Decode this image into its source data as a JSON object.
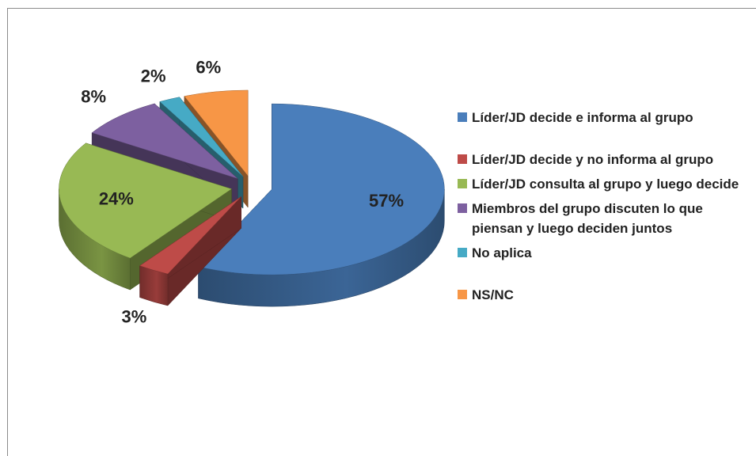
{
  "chart_data": {
    "type": "pie3d",
    "categories": [
      "Líder/JD decide e informa al grupo",
      "Líder/JD decide y no informa al grupo",
      "Líder/JD consulta  al grupo y luego decide",
      "Miembros del grupo discuten lo que piensan y luego deciden juntos",
      "No aplica",
      "NS/NC"
    ],
    "values": [
      57,
      3,
      24,
      8,
      2,
      6
    ],
    "value_labels": [
      "57%",
      "3%",
      "24%",
      "8%",
      "2%",
      "6%"
    ],
    "colors": [
      "#4a7ebb",
      "#be4b48",
      "#98b954",
      "#7d60a0",
      "#46aac5",
      "#f79646"
    ],
    "legend": "right"
  }
}
